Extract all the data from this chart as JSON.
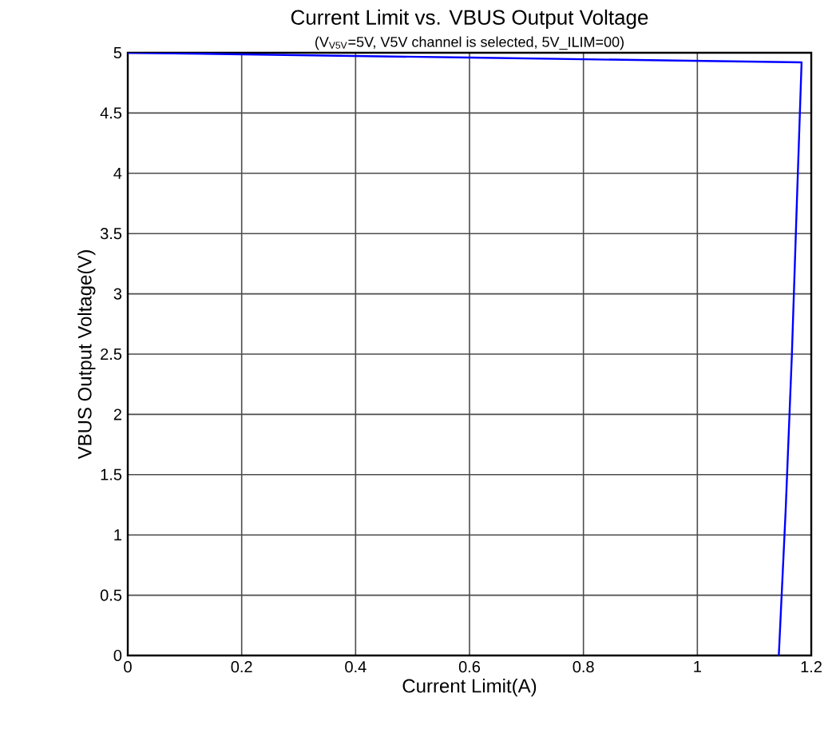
{
  "chart_data": {
    "type": "line",
    "title": "Current Limit vs. VBUS Output Voltage",
    "subtitle": "(V$_{V5V}$=5V, V5V channel is selected,  5V_ILIM=00)",
    "xlabel": "Current Limit(A)",
    "ylabel": "VBUS Output  Voltage(V)",
    "x": [
      0,
      0.6,
      1.183,
      1.175,
      1.166,
      1.155,
      1.143
    ],
    "series": [
      {
        "color": "#0000ff",
        "values": [
          5.0,
          4.96,
          4.92,
          3.8,
          2.5,
          1.2,
          0
        ]
      }
    ],
    "xlim": [
      0,
      1.2
    ],
    "ylim": [
      0,
      5
    ],
    "xticks": [
      0,
      0.2,
      0.4,
      0.6,
      0.8,
      1,
      1.2
    ],
    "yticks": [
      0,
      0.5,
      1,
      1.5,
      2,
      2.5,
      3,
      3.5,
      4,
      4.5,
      5
    ],
    "grid": true,
    "marker": "none",
    "line_style": "solid"
  }
}
